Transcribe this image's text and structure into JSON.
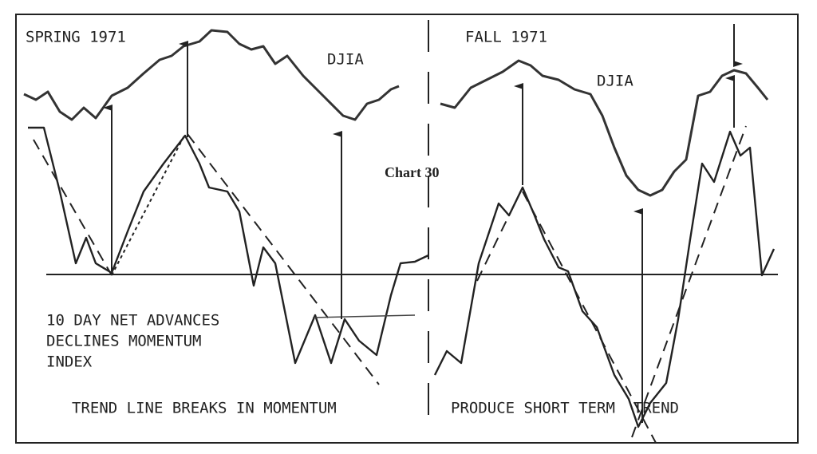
{
  "labels": {
    "left_period": "SPRING 1971",
    "left_index": "DJIA",
    "right_period": "FALL 1971",
    "right_index": "DJIA",
    "chart_number": "Chart 30",
    "momentum_line1": "10 DAY NET ADVANCES",
    "momentum_line2": "DECLINES MOMENTUM",
    "momentum_line3": "INDEX",
    "caption_left": "TREND LINE BREAKS IN MOMENTUM",
    "caption_right": "PRODUCE SHORT TERM  TREND"
  }
}
